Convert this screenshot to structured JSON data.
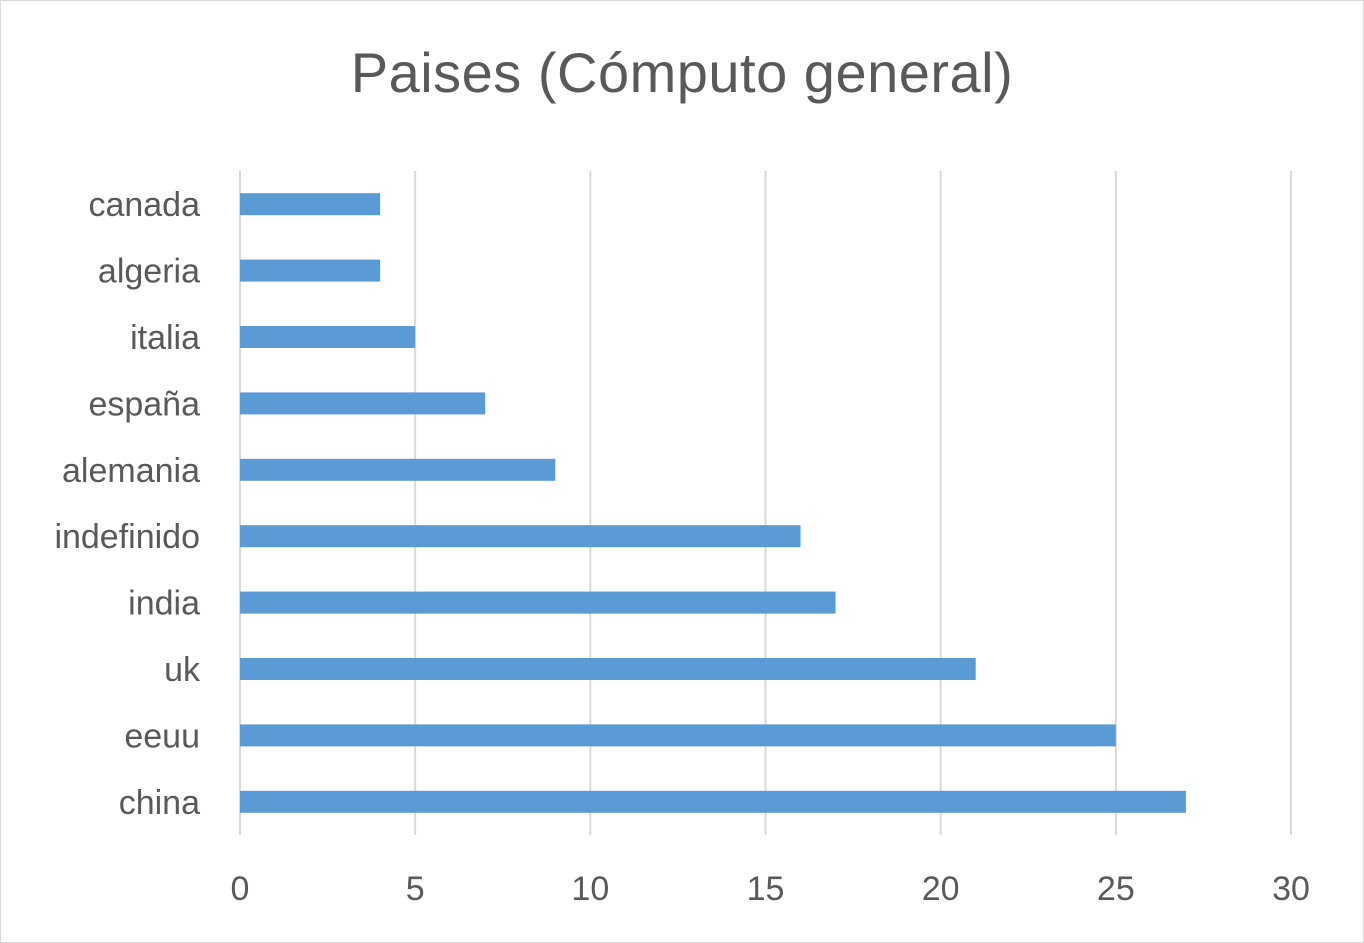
{
  "chart_data": {
    "type": "bar",
    "orientation": "horizontal",
    "title": "Paises (Cómputo general)",
    "categories": [
      "canada",
      "algeria",
      "italia",
      "españa",
      "alemania",
      "indefinido",
      "india",
      "uk",
      "eeuu",
      "china"
    ],
    "values": [
      4,
      4,
      5,
      7,
      9,
      16,
      17,
      21,
      25,
      27
    ],
    "xlim": [
      0,
      30
    ],
    "xticks": [
      0,
      5,
      10,
      15,
      20,
      25,
      30
    ],
    "xlabel": "",
    "ylabel": "",
    "grid": "vertical",
    "legend": "none",
    "colors": {
      "bar": "#5b9bd5",
      "grid": "#d9d9d9",
      "text": "#595959"
    }
  }
}
